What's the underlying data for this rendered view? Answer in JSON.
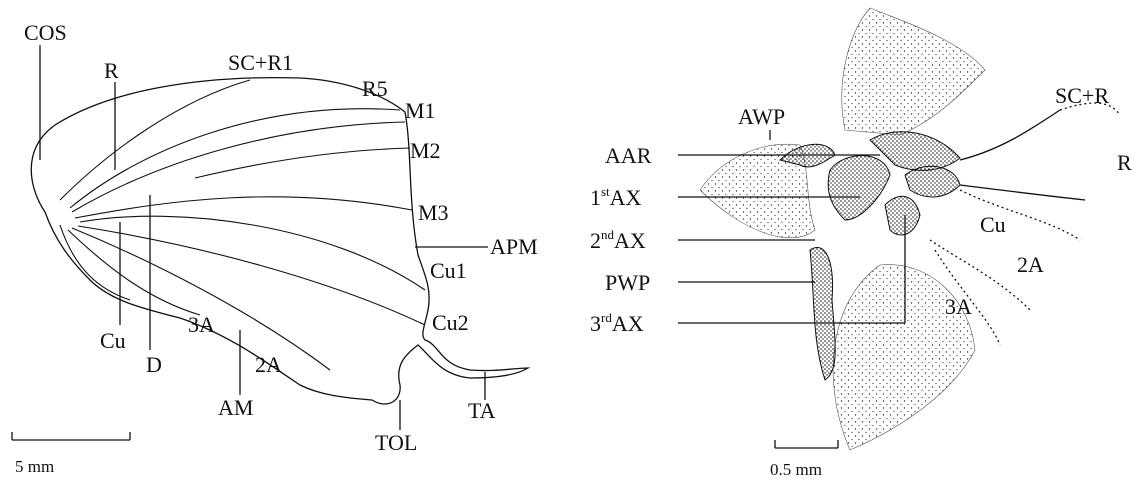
{
  "left_figure": {
    "labels": [
      "COS",
      "R",
      "SC+R1",
      "R5",
      "M1",
      "M2",
      "M3",
      "APM",
      "Cu1",
      "Cu2",
      "3A",
      "Cu",
      "D",
      "2A",
      "AM",
      "TOL",
      "TA"
    ],
    "scale_bar": "5 mm"
  },
  "right_figure": {
    "labels": [
      "AWP",
      "AAR",
      "PWP",
      "SC+R",
      "R",
      "Cu",
      "2A",
      "3A"
    ],
    "axillary": [
      {
        "number": "1",
        "suffix": "st",
        "name": "AX"
      },
      {
        "number": "2",
        "suffix": "nd",
        "name": "AX"
      },
      {
        "number": "3",
        "suffix": "rd",
        "name": "AX"
      }
    ],
    "scale_bar": "0.5 mm"
  }
}
